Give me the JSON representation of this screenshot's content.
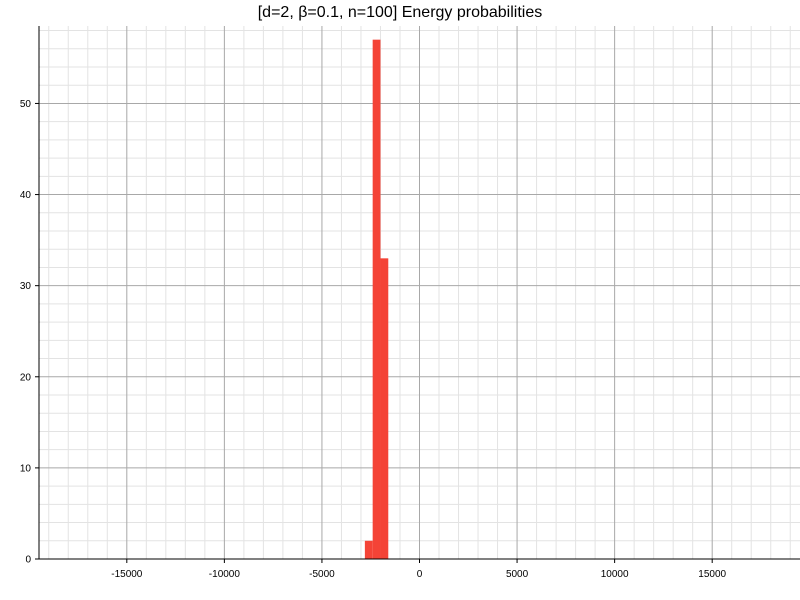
{
  "chart_data": {
    "type": "bar",
    "title": "[d=2, β=0.1, n=100] Energy probabilities",
    "xlabel": "",
    "ylabel": "",
    "xlim": [
      -19500,
      19500
    ],
    "ylim": [
      0,
      58.5
    ],
    "grid": true,
    "bar_color": "#f44336",
    "x_ticks": [
      -15000,
      -10000,
      -5000,
      0,
      5000,
      10000,
      15000
    ],
    "x_tick_labels": [
      "-15000",
      "-10000",
      "-5000",
      "0",
      "5000",
      "10000",
      "15000"
    ],
    "y_ticks": [
      0,
      10,
      20,
      30,
      40,
      50
    ],
    "y_tick_labels": [
      "0",
      "10",
      "20",
      "30",
      "40",
      "50"
    ],
    "bins": [
      {
        "x0": -2800,
        "x1": -2400,
        "value": 2
      },
      {
        "x0": -2400,
        "x1": -2000,
        "value": 57
      },
      {
        "x0": -2000,
        "x1": -1600,
        "value": 33
      }
    ]
  }
}
